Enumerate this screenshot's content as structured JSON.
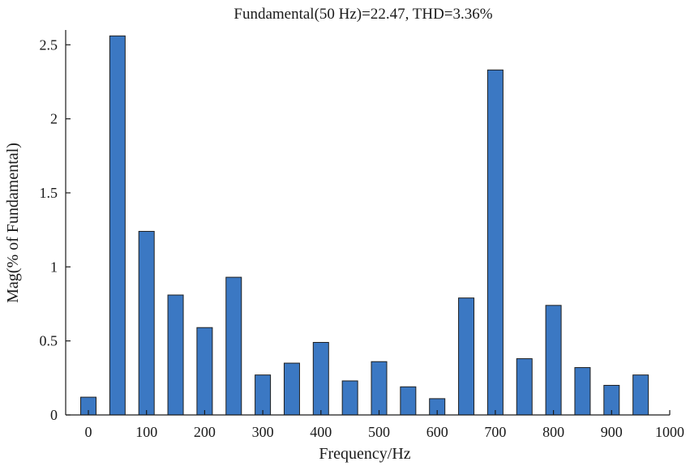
{
  "chart_data": {
    "type": "bar",
    "title": "Fundamental(50 Hz)=22.47, THD=3.36%",
    "xlabel": "Frequency/Hz",
    "ylabel": "Mag(% of Fundamental)",
    "x": [
      0,
      50,
      100,
      150,
      200,
      250,
      300,
      350,
      400,
      450,
      500,
      550,
      600,
      650,
      700,
      750,
      800,
      850,
      900,
      950
    ],
    "values": [
      0.12,
      2.56,
      1.24,
      0.81,
      0.59,
      0.93,
      0.27,
      0.35,
      0.49,
      0.23,
      0.36,
      0.19,
      0.11,
      0.79,
      2.33,
      0.38,
      0.74,
      0.32,
      0.2,
      0.27
    ],
    "xlim": [
      -25,
      1000
    ],
    "ylim": [
      0,
      2.6
    ],
    "xticks": [
      0,
      100,
      200,
      300,
      400,
      500,
      600,
      700,
      800,
      900,
      1000
    ],
    "xtick_labels": [
      "0",
      "100",
      "200",
      "300",
      "400",
      "500",
      "600",
      "700",
      "800",
      "900",
      "1000"
    ],
    "yticks": [
      0,
      0.5,
      1,
      1.5,
      2,
      2.5
    ],
    "ytick_labels": [
      "0",
      "0.5",
      "1",
      "1.5",
      "2",
      "2.5"
    ],
    "grid": false,
    "bar_color": "#3b78c3"
  }
}
